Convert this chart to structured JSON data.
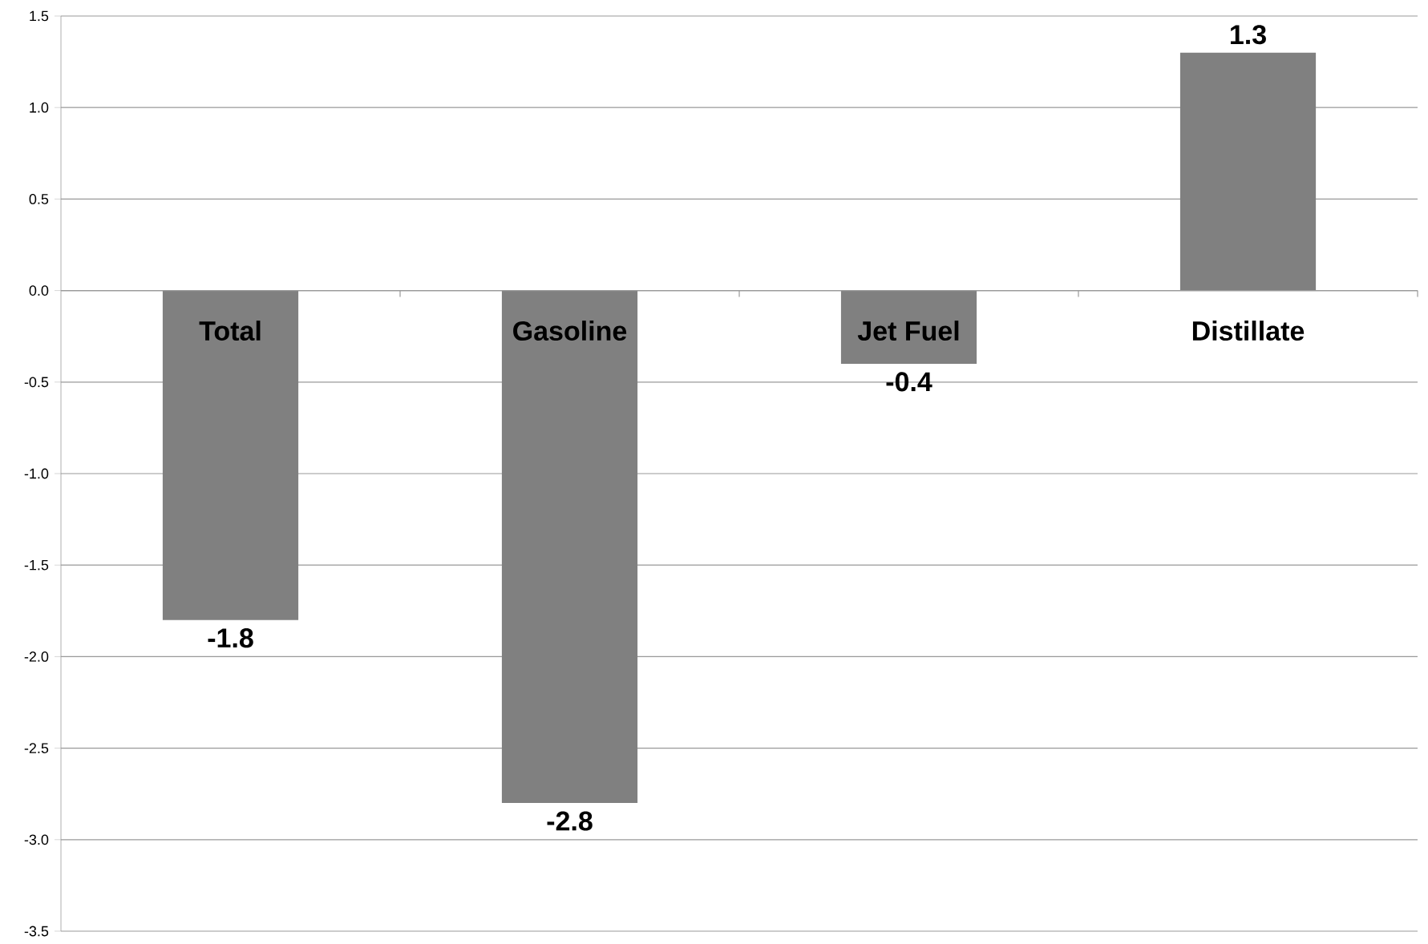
{
  "chart_data": {
    "type": "bar",
    "categories": [
      "Total",
      "Gasoline",
      "Jet Fuel",
      "Distillate"
    ],
    "values": [
      -1.8,
      -2.8,
      -0.4,
      1.3
    ],
    "color": "#808080",
    "data_labels": true,
    "grid": "y",
    "ylim": [
      -3.5,
      1.5
    ],
    "yticks": [
      {
        "value": -3.5,
        "label": "-3.5"
      },
      {
        "value": -3.0,
        "label": "-3.0"
      },
      {
        "value": -2.5,
        "label": "-2.5"
      },
      {
        "value": -2.0,
        "label": "-2.0"
      },
      {
        "value": -1.5,
        "label": "-1.5"
      },
      {
        "value": -1.0,
        "label": "-1.0"
      },
      {
        "value": -0.5,
        "label": "-0.5"
      },
      {
        "value": 0.0,
        "label": "0.0"
      },
      {
        "value": 0.5,
        "label": "0.5"
      },
      {
        "value": 1.0,
        "label": "1.0"
      },
      {
        "value": 1.5,
        "label": "1.5"
      }
    ]
  }
}
